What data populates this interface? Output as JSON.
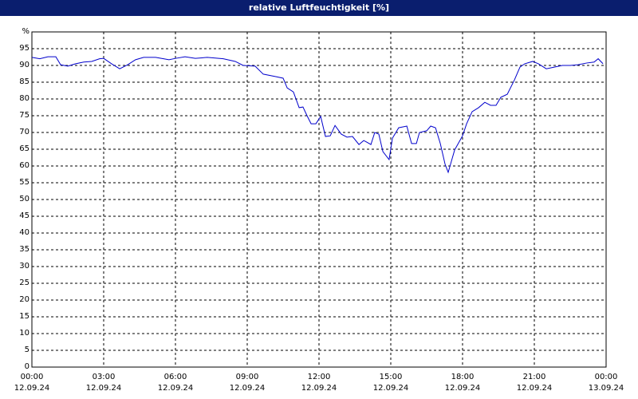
{
  "chart_data": {
    "type": "line",
    "title": "relative Luftfeuchtigkeit [%]",
    "color": "#0000cc",
    "grid": true,
    "xlim": [
      0,
      24
    ],
    "ylim": [
      0,
      100
    ],
    "xticks": [
      {
        "value": 0,
        "label": "00:00\n12.09.24"
      },
      {
        "value": 3,
        "label": "03:00\n12.09.24"
      },
      {
        "value": 6,
        "label": "06:00\n12.09.24"
      },
      {
        "value": 9,
        "label": "09:00\n12.09.24"
      },
      {
        "value": 12,
        "label": "12:00\n12.09.24"
      },
      {
        "value": 15,
        "label": "15:00\n12.09.24"
      },
      {
        "value": 18,
        "label": "18:00\n12.09.24"
      },
      {
        "value": 21,
        "label": "21:00\n12.09.24"
      },
      {
        "value": 24,
        "label": "00:00\n13.09.24"
      }
    ],
    "yticks": [
      0,
      5,
      10,
      15,
      20,
      25,
      30,
      35,
      40,
      45,
      50,
      55,
      60,
      65,
      70,
      75,
      80,
      85,
      90,
      95,
      {
        "value": 100,
        "label": "%"
      }
    ],
    "x": [
      0.0,
      0.33,
      0.67,
      1.0,
      1.2,
      1.5,
      1.83,
      2.17,
      2.5,
      2.83,
      3.0,
      3.33,
      3.67,
      4.0,
      4.33,
      4.67,
      5.17,
      5.5,
      5.73,
      6.0,
      6.4,
      6.83,
      7.33,
      8.0,
      8.5,
      8.83,
      9.33,
      9.67,
      10.17,
      10.5,
      10.67,
      10.93,
      11.17,
      11.33,
      11.5,
      11.67,
      11.87,
      12.07,
      12.27,
      12.47,
      12.67,
      12.93,
      13.17,
      13.4,
      13.67,
      13.87,
      14.0,
      14.17,
      14.33,
      14.5,
      14.67,
      14.93,
      15.07,
      15.33,
      15.67,
      15.87,
      16.07,
      16.2,
      16.5,
      16.67,
      16.87,
      17.07,
      17.27,
      17.4,
      17.67,
      18.0,
      18.17,
      18.4,
      18.67,
      18.93,
      19.17,
      19.4,
      19.6,
      19.87,
      20.17,
      20.4,
      20.6,
      20.93,
      21.17,
      21.5,
      21.83,
      22.17,
      22.5,
      22.83,
      23.17,
      23.5,
      23.67,
      23.87
    ],
    "values": [
      92.4,
      92,
      92.6,
      92.6,
      90.2,
      89.8,
      90.5,
      91,
      91.2,
      92,
      92.1,
      90.5,
      89,
      90.2,
      91.7,
      92.4,
      92.4,
      92,
      91.7,
      92.1,
      92.6,
      92.1,
      92.4,
      92,
      91.2,
      90,
      89.8,
      87.4,
      86.7,
      86.2,
      83.3,
      82.1,
      77.4,
      77.6,
      75,
      72.6,
      72.6,
      74.8,
      68.8,
      69,
      72.1,
      69.5,
      68.6,
      68.8,
      66.4,
      67.6,
      67.1,
      66.4,
      70,
      69.5,
      64.3,
      61.9,
      68.3,
      71.4,
      71.9,
      66.7,
      66.7,
      70,
      70.5,
      71.9,
      71.4,
      66.7,
      60.5,
      58.1,
      64.8,
      69,
      72.6,
      76.2,
      77.4,
      79,
      78.1,
      78.1,
      80.5,
      81.4,
      85.7,
      89.5,
      90.5,
      91.2,
      90.5,
      89,
      89.5,
      90,
      90,
      90.2,
      90.7,
      91,
      92,
      90.5
    ]
  }
}
